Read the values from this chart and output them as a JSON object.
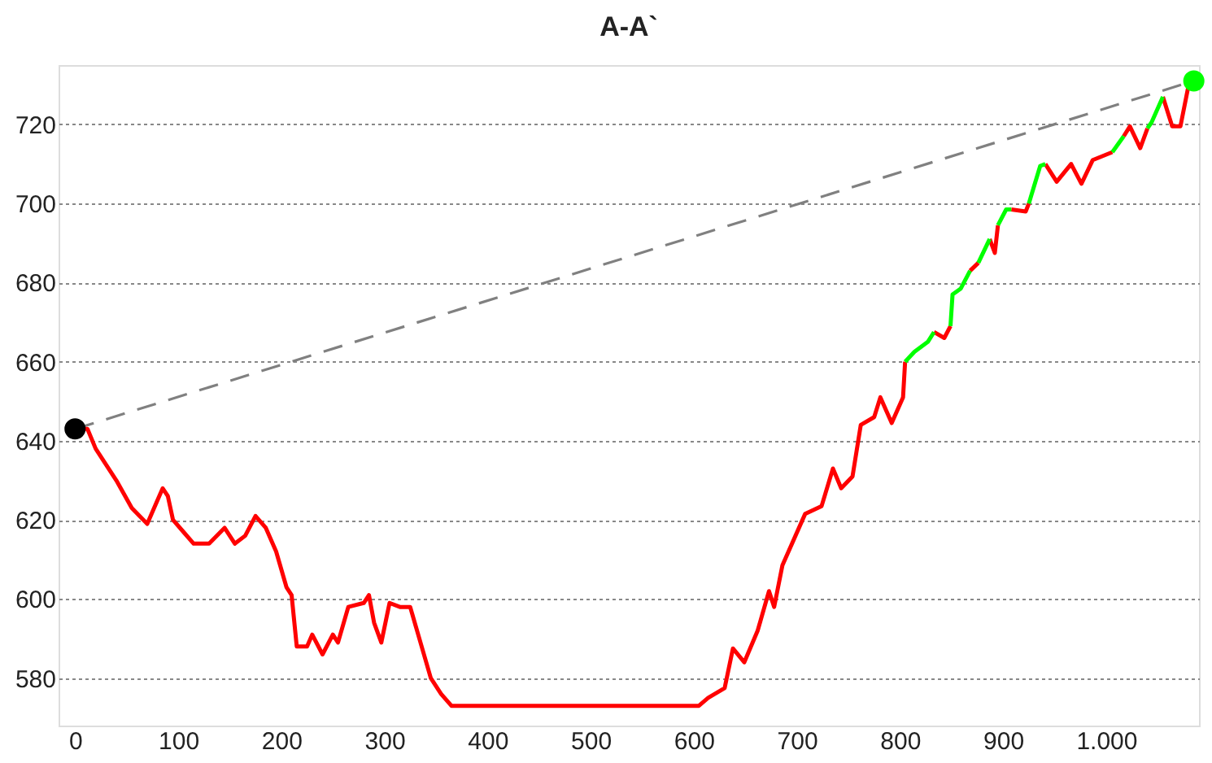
{
  "chart_data": {
    "type": "line",
    "title": "A-A`",
    "xlim": [
      -16,
      1090
    ],
    "ylim": [
      568,
      735
    ],
    "xticks": [
      0,
      100,
      200,
      300,
      400,
      500,
      600,
      700,
      800,
      900,
      {
        "value": 1000,
        "label": "1.000"
      }
    ],
    "yticks": [
      580,
      600,
      620,
      640,
      660,
      680,
      700,
      720
    ],
    "grid": "y",
    "series": [
      {
        "line_style": "dashed",
        "color": "#808080",
        "x": [
          0,
          1085
        ],
        "values": [
          643,
          731
        ]
      },
      {
        "line_style": "solid",
        "color": "#ff0000",
        "x": [
          0,
          12,
          20,
          40,
          55,
          70,
          80,
          85,
          90,
          95,
          105,
          115,
          130,
          145,
          155,
          165,
          175,
          185,
          195,
          205,
          210,
          215,
          225,
          230,
          240,
          250,
          255,
          265,
          280,
          285,
          290,
          297,
          305,
          315,
          325,
          335,
          345,
          355,
          365,
          605,
          614,
          630,
          638,
          649,
          662,
          673,
          678,
          686,
          708,
          724,
          735,
          743,
          754,
          762,
          775,
          781,
          792,
          803,
          805,
          814,
          833,
          843,
          849,
          851,
          868,
          876,
          880,
          887,
          892,
          895,
          903,
          908,
          922,
          925,
          936,
          941,
          952,
          966,
          976,
          987,
          1006,
          1010,
          1017,
          1023,
          1033,
          1040,
          1044,
          1055,
          1064,
          1072,
          1080,
          1085
        ],
        "values": [
          643,
          643,
          638,
          630,
          623,
          619,
          625,
          628,
          626,
          620,
          617,
          614,
          614,
          618,
          614,
          616,
          621,
          618,
          612,
          603,
          601,
          588,
          588,
          591,
          586,
          591,
          589,
          598,
          599,
          601,
          594,
          589,
          599,
          598,
          598,
          589,
          580,
          576,
          573,
          573,
          575,
          577.5,
          587.5,
          584,
          592,
          602,
          598,
          608.5,
          621.5,
          623.5,
          633,
          628,
          631,
          644,
          646,
          651,
          644.5,
          651,
          660,
          null,
          667.5,
          666,
          669,
          null,
          683,
          685,
          null,
          691,
          687.5,
          694.5,
          null,
          698.5,
          698,
          700,
          null,
          710,
          705.5,
          710,
          705,
          711,
          713,
          null,
          717,
          719.5,
          714,
          719,
          null,
          727,
          719.5,
          719.5,
          730,
          731
        ]
      },
      {
        "line_style": "solid",
        "color": "#00ff00",
        "x": [
          805,
          814,
          827,
          833,
          840,
          849,
          851,
          859,
          868,
          872,
          876,
          887,
          890,
          895,
          903,
          908,
          915,
          925,
          936,
          941,
          960,
          1006,
          1017,
          1030,
          1040,
          1044,
          1055
        ],
        "values": [
          660,
          662.5,
          665,
          667.5,
          null,
          669,
          677,
          678.5,
          683,
          null,
          685,
          691,
          null,
          694.5,
          698.5,
          698.5,
          null,
          700,
          709.5,
          710,
          null,
          713,
          717,
          null,
          719,
          720.5,
          727
        ]
      },
      {
        "type": "scatter",
        "marker": "circle",
        "color": "#000000",
        "x": [
          0
        ],
        "values": [
          643
        ]
      },
      {
        "type": "scatter",
        "marker": "circle",
        "color": "#00ff00",
        "x": [
          1085
        ],
        "values": [
          731
        ]
      }
    ]
  }
}
